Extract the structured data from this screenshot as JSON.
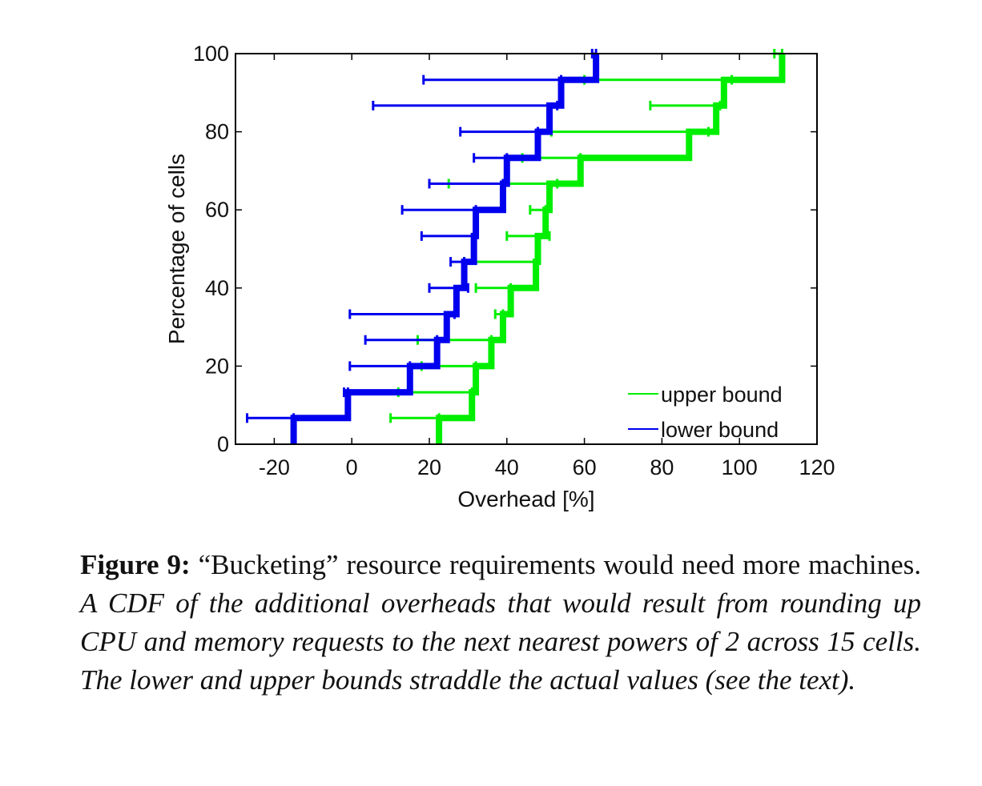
{
  "chart_data": {
    "type": "line",
    "title": "",
    "xlabel": "Overhead [%]",
    "ylabel": "Percentage of cells",
    "xlim": [
      -30,
      120
    ],
    "ylim": [
      0,
      100
    ],
    "xticks": [
      -20,
      0,
      20,
      40,
      60,
      80,
      100,
      120
    ],
    "yticks": [
      0,
      20,
      40,
      60,
      80,
      100
    ],
    "grid": false,
    "legend_position": "bottom-right",
    "series": [
      {
        "name": "upper bound",
        "color": "#00ee00",
        "values": [
          {
            "x": 22.5,
            "y": 6.7,
            "err_low": 10,
            "err_high": 22.5
          },
          {
            "x": 31,
            "y": 13.3,
            "err_low": 12,
            "err_high": 31
          },
          {
            "x": 32,
            "y": 20,
            "err_low": 18,
            "err_high": 32
          },
          {
            "x": 36,
            "y": 26.7,
            "err_low": 17,
            "err_high": 36
          },
          {
            "x": 39,
            "y": 33.3,
            "err_low": 37,
            "err_high": 39
          },
          {
            "x": 41,
            "y": 40,
            "err_low": 32,
            "err_high": 41
          },
          {
            "x": 47.5,
            "y": 46.7,
            "err_low": 29,
            "err_high": 47.5
          },
          {
            "x": 48,
            "y": 53.3,
            "err_low": 40,
            "err_high": 51
          },
          {
            "x": 50,
            "y": 60,
            "err_low": 46,
            "err_high": 50
          },
          {
            "x": 51,
            "y": 66.7,
            "err_low": 25,
            "err_high": 53
          },
          {
            "x": 59,
            "y": 73.3,
            "err_low": 44,
            "err_high": 59
          },
          {
            "x": 87,
            "y": 80,
            "err_low": 51.5,
            "err_high": 92
          },
          {
            "x": 94,
            "y": 86.7,
            "err_low": 77,
            "err_high": 95
          },
          {
            "x": 96,
            "y": 93.3,
            "err_low": 60,
            "err_high": 98
          },
          {
            "x": 111,
            "y": 100,
            "err_low": 109,
            "err_high": 111
          }
        ]
      },
      {
        "name": "lower bound",
        "color": "#0000ee",
        "values": [
          {
            "x": -15,
            "y": 6.7,
            "err_low": -27,
            "err_high": -15
          },
          {
            "x": -1,
            "y": 13.3,
            "err_low": -2,
            "err_high": -1
          },
          {
            "x": 15,
            "y": 20,
            "err_low": -0.5,
            "err_high": 15
          },
          {
            "x": 22,
            "y": 26.7,
            "err_low": 3.5,
            "err_high": 22
          },
          {
            "x": 24.5,
            "y": 33.3,
            "err_low": -0.5,
            "err_high": 26.5
          },
          {
            "x": 27,
            "y": 40,
            "err_low": 20,
            "err_high": 30
          },
          {
            "x": 29,
            "y": 46.7,
            "err_low": 25.5,
            "err_high": 29
          },
          {
            "x": 31.5,
            "y": 53.3,
            "err_low": 18,
            "err_high": 31.5
          },
          {
            "x": 32,
            "y": 60,
            "err_low": 13,
            "err_high": 32
          },
          {
            "x": 39,
            "y": 66.7,
            "err_low": 20,
            "err_high": 39
          },
          {
            "x": 40,
            "y": 73.3,
            "err_low": 31.5,
            "err_high": 40
          },
          {
            "x": 48,
            "y": 80,
            "err_low": 28,
            "err_high": 48
          },
          {
            "x": 51,
            "y": 86.7,
            "err_low": 5.5,
            "err_high": 53
          },
          {
            "x": 54,
            "y": 93.3,
            "err_low": 18.5,
            "err_high": 54
          },
          {
            "x": 63,
            "y": 100,
            "err_low": 62,
            "err_high": 63
          }
        ]
      }
    ]
  },
  "caption": {
    "label": "Figure 9:",
    "title": "“Bucketing” resource requirements would need more machines.",
    "body": "A CDF of the additional overheads that would result from rounding up CPU and memory requests to the next nearest powers of 2 across 15 cells. The lower and upper bounds straddle the actual values (see the text)."
  }
}
